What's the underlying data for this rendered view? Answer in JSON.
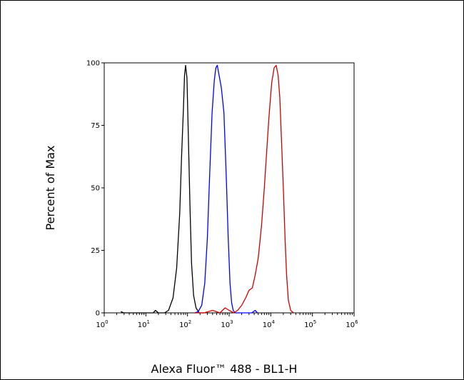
{
  "chart_data": {
    "type": "line",
    "title": "",
    "xlabel": "Alexa Fluor™ 488 - BL1-H",
    "ylabel": "Percent of Max",
    "x_scale": "log",
    "xlim": [
      1,
      1000000
    ],
    "ylim": [
      0,
      100
    ],
    "x_ticks": [
      {
        "value": 1,
        "base": "10",
        "exp": "0"
      },
      {
        "value": 10,
        "base": "10",
        "exp": "1"
      },
      {
        "value": 100,
        "base": "10",
        "exp": "2"
      },
      {
        "value": 1000,
        "base": "10",
        "exp": "3"
      },
      {
        "value": 10000,
        "base": "10",
        "exp": "4"
      },
      {
        "value": 100000,
        "base": "10",
        "exp": "5"
      },
      {
        "value": 1000000,
        "base": "10",
        "exp": "6"
      }
    ],
    "y_ticks": [
      0,
      25,
      50,
      75,
      100
    ],
    "grid": false,
    "legend": "none",
    "series": [
      {
        "color": "#000000",
        "points": [
          [
            2.5,
            0.5
          ],
          [
            3,
            0
          ],
          [
            15,
            0
          ],
          [
            17,
            1
          ],
          [
            20,
            0
          ],
          [
            28,
            0
          ],
          [
            35,
            1
          ],
          [
            45,
            6
          ],
          [
            55,
            18
          ],
          [
            65,
            40
          ],
          [
            72,
            62
          ],
          [
            80,
            82
          ],
          [
            85,
            95
          ],
          [
            90,
            99
          ],
          [
            97,
            94
          ],
          [
            105,
            70
          ],
          [
            115,
            42
          ],
          [
            125,
            20
          ],
          [
            140,
            7
          ],
          [
            160,
            2
          ],
          [
            190,
            0
          ],
          [
            250,
            0
          ]
        ]
      },
      {
        "color": "#0000ff",
        "points": [
          [
            150,
            0
          ],
          [
            180,
            0.5
          ],
          [
            220,
            3
          ],
          [
            260,
            12
          ],
          [
            300,
            30
          ],
          [
            340,
            55
          ],
          [
            390,
            80
          ],
          [
            440,
            93
          ],
          [
            480,
            98
          ],
          [
            520,
            99
          ],
          [
            560,
            96
          ],
          [
            650,
            90
          ],
          [
            750,
            80
          ],
          [
            850,
            55
          ],
          [
            950,
            30
          ],
          [
            1050,
            12
          ],
          [
            1150,
            4
          ],
          [
            1250,
            1
          ],
          [
            1400,
            0
          ],
          [
            2000,
            0
          ],
          [
            3500,
            0
          ],
          [
            4200,
            1
          ],
          [
            4800,
            0
          ]
        ]
      },
      {
        "color": "#cc0000",
        "points": [
          [
            150,
            0
          ],
          [
            250,
            0
          ],
          [
            400,
            1
          ],
          [
            600,
            0
          ],
          [
            800,
            2
          ],
          [
            1000,
            1
          ],
          [
            1300,
            0
          ],
          [
            1600,
            1
          ],
          [
            2000,
            3
          ],
          [
            2500,
            6
          ],
          [
            3000,
            9
          ],
          [
            3600,
            10
          ],
          [
            4200,
            15
          ],
          [
            5000,
            22
          ],
          [
            6000,
            35
          ],
          [
            7000,
            50
          ],
          [
            8000,
            65
          ],
          [
            9000,
            78
          ],
          [
            10500,
            92
          ],
          [
            12000,
            98
          ],
          [
            13500,
            99
          ],
          [
            15000,
            95
          ],
          [
            16500,
            86
          ],
          [
            18000,
            70
          ],
          [
            20000,
            50
          ],
          [
            22000,
            30
          ],
          [
            24000,
            15
          ],
          [
            26500,
            5
          ],
          [
            30000,
            1
          ],
          [
            35000,
            0
          ]
        ]
      }
    ]
  }
}
